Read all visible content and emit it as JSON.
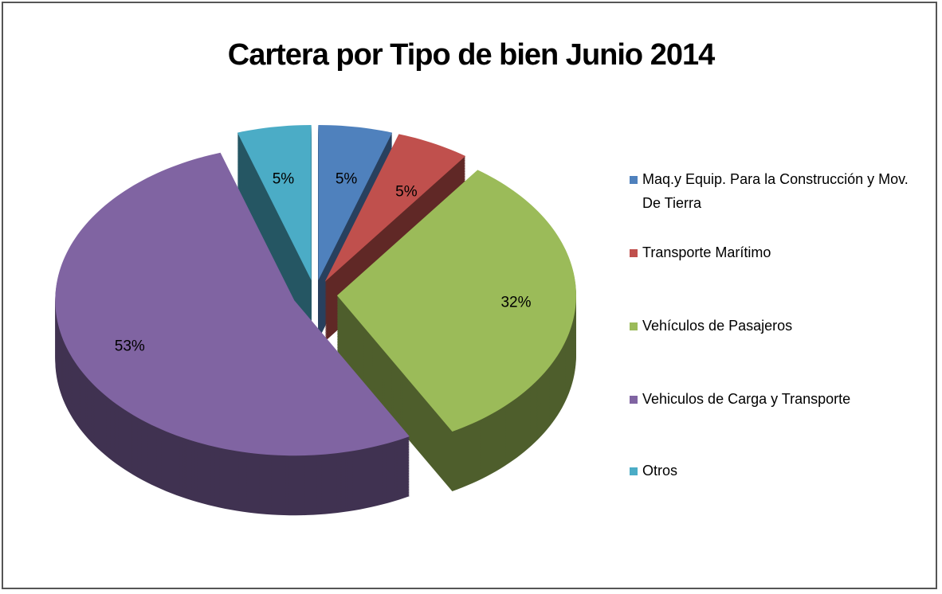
{
  "chart_data": {
    "type": "pie",
    "title": "Cartera por Tipo de bien Junio 2014",
    "categories": [
      "Maq.y Equip. Para la Construcción  y Mov. De Tierra",
      "Transporte Marítimo",
      "Vehículos de Pasajeros",
      "Vehiculos de Carga y Transporte",
      "Otros"
    ],
    "values": [
      5,
      5,
      32,
      53,
      5
    ],
    "value_labels": [
      "5%",
      "5%",
      "32%",
      "53%",
      "5%"
    ],
    "colors": [
      "#4f81bd",
      "#c0504d",
      "#9bbb59",
      "#8064a2",
      "#4bacc6"
    ],
    "legend": "right"
  }
}
